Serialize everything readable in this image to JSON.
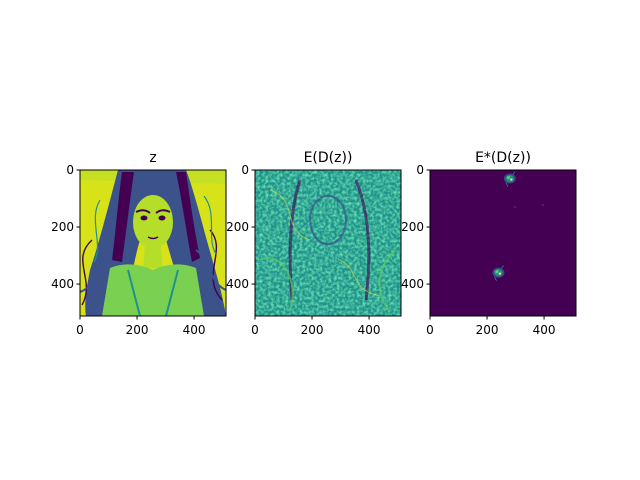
{
  "chart_data": [
    {
      "type": "heatmap",
      "title": "z",
      "colormap": "viridis",
      "content": "grayscale-style illustration of a woman's face with long flowing hair",
      "xlim": [
        0,
        512
      ],
      "ylim": [
        512,
        0
      ],
      "xticks": [
        0,
        200,
        400
      ],
      "yticks": [
        0,
        200,
        400
      ],
      "xlabel": "",
      "ylabel": ""
    },
    {
      "type": "heatmap",
      "title": "E(D(z))",
      "colormap": "viridis",
      "content": "noisy textured reconstruction, faint face and hair outlines",
      "xlim": [
        0,
        512
      ],
      "ylim": [
        512,
        0
      ],
      "xticks": [
        0,
        200,
        400
      ],
      "yticks": [
        0,
        200,
        400
      ],
      "xlabel": "",
      "ylabel": ""
    },
    {
      "type": "heatmap",
      "title": "E*(D(z))",
      "colormap": "viridis",
      "content": "nearly uniform low values with two small bright clusters",
      "xlim": [
        0,
        512
      ],
      "ylim": [
        512,
        0
      ],
      "xticks": [
        0,
        200,
        400
      ],
      "yticks": [
        0,
        200,
        400
      ],
      "xlabel": "",
      "ylabel": "",
      "clusters": [
        {
          "x": 280,
          "y": 30
        },
        {
          "x": 240,
          "y": 360
        }
      ]
    }
  ],
  "colors": {
    "viridis_low": "#440154",
    "viridis_mid": "#21918c",
    "viridis_midlow": "#3b528b",
    "viridis_midhigh": "#5ec962",
    "viridis_high": "#fde725"
  }
}
